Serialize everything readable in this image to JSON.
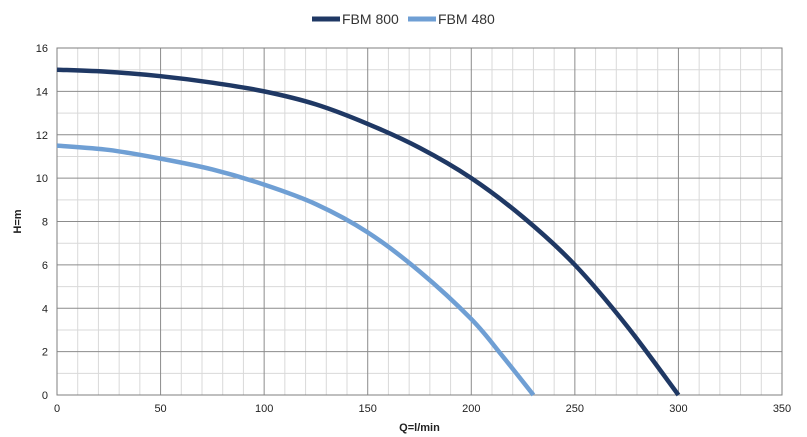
{
  "chart_data": {
    "type": "line",
    "xlabel": "Q=l/min",
    "ylabel": "H=m",
    "xlim": [
      0,
      350
    ],
    "ylim": [
      0,
      16
    ],
    "x_ticks": [
      0,
      50,
      100,
      150,
      200,
      250,
      300,
      350
    ],
    "y_ticks": [
      0,
      2,
      4,
      6,
      8,
      10,
      12,
      14,
      16
    ],
    "x_minor_step": 10,
    "y_minor_step": 1,
    "grid": true,
    "legend_position": "top-center",
    "series": [
      {
        "name": "FBM 800",
        "color": "#1f3864",
        "x": [
          0,
          25,
          50,
          75,
          100,
          125,
          150,
          175,
          200,
          225,
          250,
          275,
          300
        ],
        "y": [
          15.0,
          14.9,
          14.7,
          14.4,
          14.0,
          13.4,
          12.5,
          11.4,
          10.0,
          8.2,
          6.0,
          3.2,
          0.0
        ]
      },
      {
        "name": "FBM 480",
        "color": "#6f9fd4",
        "x": [
          0,
          25,
          50,
          75,
          100,
          125,
          150,
          175,
          200,
          215,
          230
        ],
        "y": [
          11.5,
          11.3,
          10.9,
          10.4,
          9.7,
          8.8,
          7.5,
          5.7,
          3.5,
          1.8,
          0.0
        ]
      }
    ]
  }
}
